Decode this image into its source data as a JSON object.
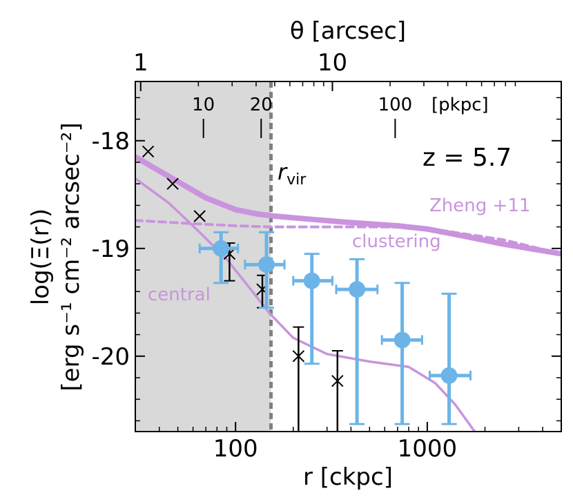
{
  "chart_data": {
    "type": "scatter",
    "x_scale": "log",
    "xlim": [
      30,
      5000
    ],
    "ylim": [
      -20.7,
      -17.45
    ],
    "xlabel": "r [ckpc]",
    "ylabel_line1": "log(Ξ(r))",
    "ylabel_line2": "[erg s⁻¹ cm⁻² arcsec⁻²]",
    "top_xlabel": "θ [arcsec]",
    "x_ticks": [
      {
        "value": 100,
        "label": "100"
      },
      {
        "value": 1000,
        "label": "1000"
      }
    ],
    "y_ticks": [
      {
        "value": -18,
        "label": "-18"
      },
      {
        "value": -19,
        "label": "-19"
      },
      {
        "value": -20,
        "label": "-20"
      }
    ],
    "top_ticks": [
      {
        "value": 32,
        "label": "1"
      },
      {
        "value": 320,
        "label": "10"
      }
    ],
    "pkpc_unit": "[pkpc]",
    "pkpc_ticks": [
      {
        "value": 68,
        "label": "10"
      },
      {
        "value": 136,
        "label": "20"
      },
      {
        "value": 680,
        "label": "100"
      }
    ],
    "redshift_label": "z = 5.7",
    "rvir": {
      "x": 153,
      "label": "r",
      "subscript": "vir"
    },
    "shaded_region": {
      "x_from": 30,
      "x_to": 153,
      "color": "#d9d9d9"
    },
    "model_labels": {
      "zheng": "Zheng +11",
      "clustering": "clustering",
      "central": "central"
    },
    "colors": {
      "obs": "#6cb4e8",
      "model": "#c994dd",
      "grey": "#d9d9d9",
      "rvir": "#808080",
      "cross": "#000000"
    },
    "observed": [
      {
        "x": 84,
        "y": -19.0,
        "xlo": 65,
        "xhi": 103,
        "ylo": -19.32,
        "yhi": -18.85
      },
      {
        "x": 145,
        "y": -19.15,
        "xlo": 112,
        "xhi": 180,
        "ylo": -19.55,
        "yhi": -18.85
      },
      {
        "x": 250,
        "y": -19.3,
        "xlo": 200,
        "xhi": 320,
        "ylo": -20.07,
        "yhi": -19.05
      },
      {
        "x": 430,
        "y": -19.38,
        "xlo": 335,
        "xhi": 550,
        "ylo": -20.63,
        "yhi": -19.1
      },
      {
        "x": 740,
        "y": -19.85,
        "xlo": 580,
        "xhi": 940,
        "ylo": -20.63,
        "yhi": -19.32
      },
      {
        "x": 1300,
        "y": -20.18,
        "xlo": 1030,
        "xhi": 1680,
        "ylo": -20.63,
        "yhi": -19.42
      }
    ],
    "crosses": [
      {
        "x": 35,
        "y": -18.1
      },
      {
        "x": 47,
        "y": -18.4
      },
      {
        "x": 65,
        "y": -18.7
      },
      {
        "x": 93,
        "y": -19.05,
        "ylo": -19.3,
        "yhi": -18.95
      },
      {
        "x": 138,
        "y": -19.38,
        "ylo": -19.55,
        "yhi": -19.25
      },
      {
        "x": 213,
        "y": -20.0,
        "ylo": -20.7,
        "yhi": -19.73
      },
      {
        "x": 340,
        "y": -20.23,
        "ylo": -20.7,
        "yhi": -19.95
      }
    ],
    "series": [
      {
        "key": "zheng",
        "x": [
          30,
          50,
          70,
          100,
          130,
          160,
          250,
          400,
          700,
          1000,
          1500,
          2500,
          5000
        ],
        "y": [
          -18.15,
          -18.38,
          -18.53,
          -18.64,
          -18.68,
          -18.7,
          -18.73,
          -18.76,
          -18.79,
          -18.82,
          -18.88,
          -18.96,
          -19.05
        ]
      },
      {
        "key": "clustering",
        "x": [
          30,
          60,
          100,
          153,
          300,
          600,
          1000,
          1500,
          2500,
          5000
        ],
        "y": [
          -18.74,
          -18.77,
          -18.79,
          -18.8,
          -18.8,
          -18.8,
          -18.81,
          -18.86,
          -18.92,
          -19.05
        ]
      },
      {
        "key": "central",
        "x": [
          30,
          45,
          65,
          90,
          120,
          150,
          200,
          300,
          500,
          800,
          1100,
          1400,
          1800
        ],
        "y": [
          -18.35,
          -18.58,
          -18.85,
          -19.1,
          -19.38,
          -19.6,
          -19.83,
          -19.98,
          -20.05,
          -20.1,
          -20.25,
          -20.45,
          -20.72
        ]
      }
    ]
  }
}
